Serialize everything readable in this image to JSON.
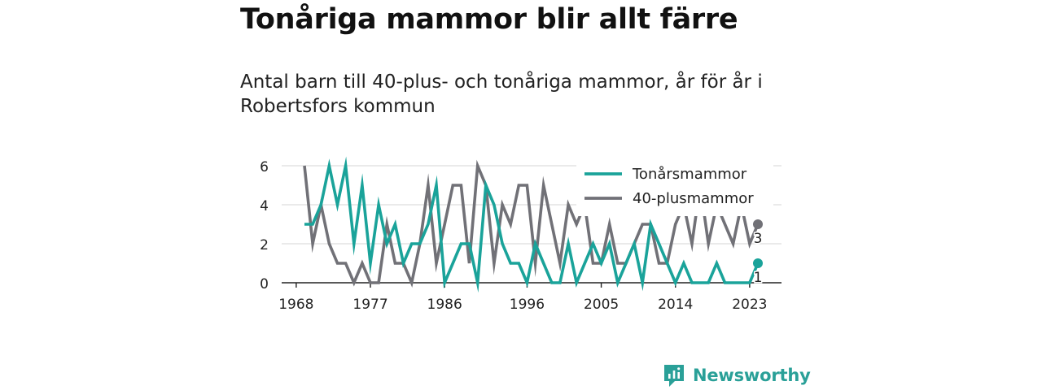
{
  "header": {
    "title": "Tonåriga mammor blir allt färre",
    "subtitle": "Antal barn till 40-plus- och tonåriga mammor, år för år i Robertsfors kommun"
  },
  "brand": {
    "name": "Newsworthy",
    "icon": "chart-bubble-icon",
    "color": "#2aa098"
  },
  "chart_data": {
    "type": "line",
    "x": [
      1969,
      1970,
      1971,
      1972,
      1973,
      1974,
      1975,
      1976,
      1977,
      1978,
      1979,
      1980,
      1981,
      1982,
      1983,
      1984,
      1985,
      1986,
      1987,
      1988,
      1989,
      1990,
      1991,
      1992,
      1993,
      1994,
      1995,
      1996,
      1997,
      1998,
      1999,
      2000,
      2001,
      2002,
      2003,
      2004,
      2005,
      2006,
      2007,
      2008,
      2009,
      2010,
      2011,
      2012,
      2013,
      2014,
      2015,
      2016,
      2017,
      2018,
      2019,
      2020,
      2021,
      2022,
      2023,
      2024
    ],
    "series": [
      {
        "name": "Tonårsmammor",
        "color": "#1aa39a",
        "values": [
          3,
          3,
          4,
          6,
          4,
          6,
          2,
          5,
          1,
          4,
          2,
          3,
          1,
          2,
          2,
          3,
          5,
          0,
          1,
          2,
          2,
          0,
          5,
          4,
          2,
          1,
          1,
          0,
          2,
          1,
          0,
          0,
          2,
          0,
          1,
          2,
          1,
          2,
          0,
          1,
          2,
          0,
          3,
          2,
          1,
          0,
          1,
          0,
          0,
          0,
          1,
          0,
          0,
          0,
          0,
          1
        ]
      },
      {
        "name": "40-plusmammor",
        "color": "#717177",
        "values": [
          6,
          2,
          4,
          2,
          1,
          1,
          0,
          1,
          0,
          0,
          3,
          1,
          1,
          0,
          2,
          5,
          1,
          3,
          5,
          5,
          1,
          6,
          5,
          1,
          4,
          3,
          5,
          5,
          1,
          5,
          3,
          1,
          4,
          3,
          4,
          1,
          1,
          3,
          1,
          1,
          2,
          3,
          3,
          1,
          1,
          3,
          4,
          2,
          5,
          2,
          4,
          3,
          2,
          4,
          2,
          3
        ]
      }
    ],
    "end_labels": [
      "1",
      "3"
    ],
    "xticks": [
      1968,
      1977,
      1986,
      1996,
      2005,
      2014,
      2023
    ],
    "yticks": [
      0,
      2,
      4,
      6
    ],
    "xlim": [
      1968,
      2025
    ],
    "ylim": [
      0,
      6.4
    ],
    "grid": true,
    "legend_position": "top-right",
    "title": "",
    "xlabel": "",
    "ylabel": ""
  }
}
